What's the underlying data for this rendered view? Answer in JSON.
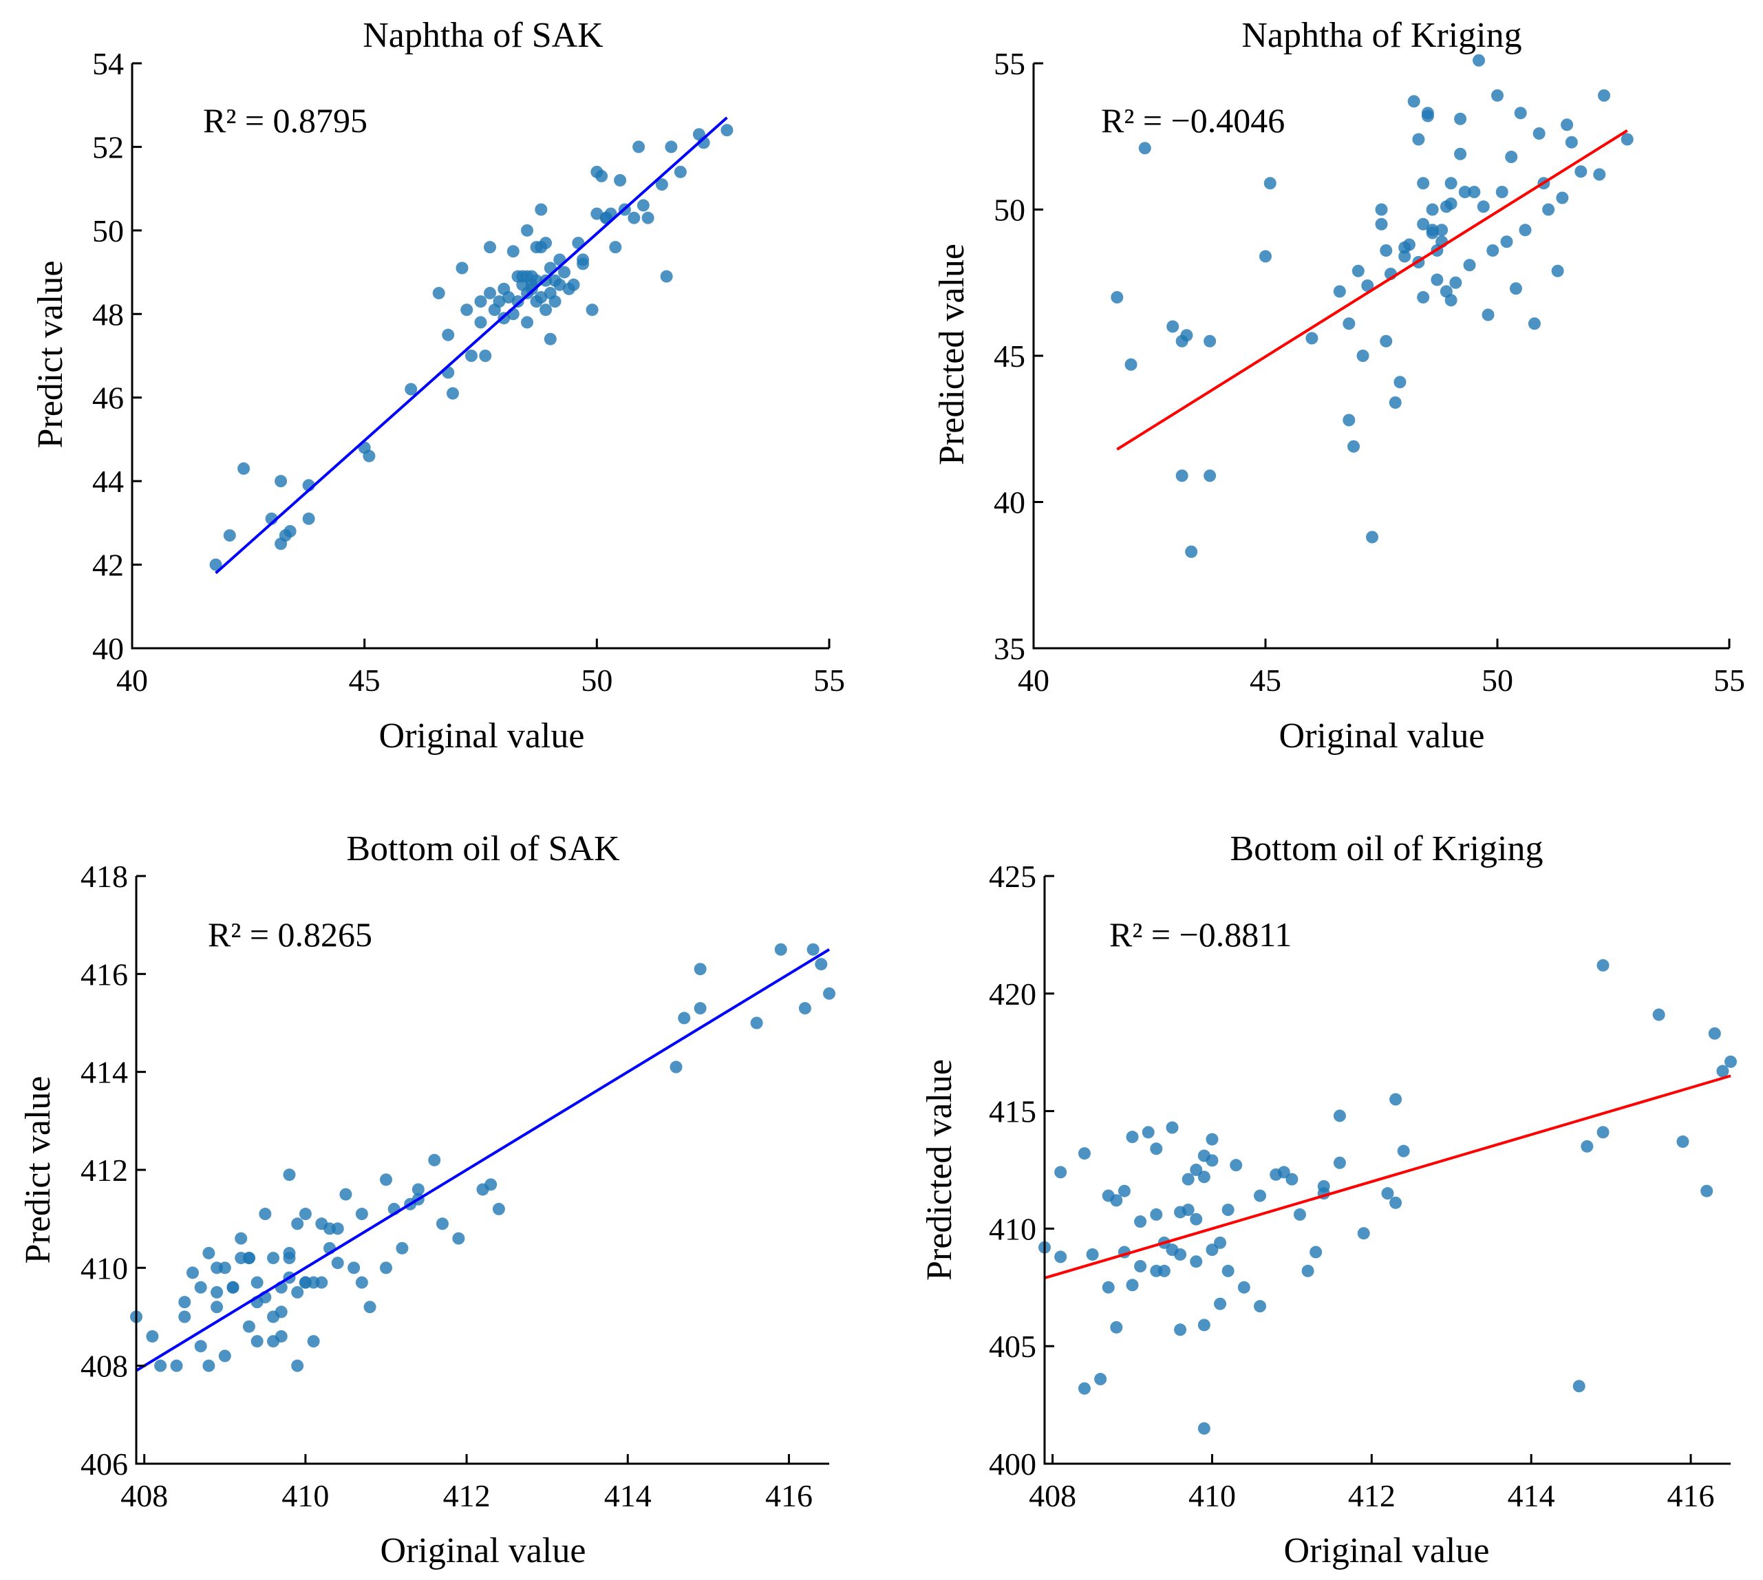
{
  "colors": {
    "point": "#1f77b4",
    "sak_fit": "#0000ff",
    "kriging_fit": "#ff0000",
    "axis": "#000000"
  },
  "chart_data": [
    {
      "type": "scatter",
      "title": "Naphtha of SAK",
      "xlabel": "Original value",
      "ylabel": "Predict value",
      "annotation": "R² = 0.8795",
      "xlim": [
        40,
        55
      ],
      "ylim": [
        40,
        54
      ],
      "xticks": [
        "40",
        "45",
        "50",
        "55"
      ],
      "yticks": [
        "40",
        "42",
        "44",
        "46",
        "48",
        "50",
        "52",
        "54"
      ],
      "fit_line": {
        "x": [
          41.8,
          52.8
        ],
        "y": [
          41.8,
          52.7
        ],
        "color": "#0000ff"
      },
      "x": [
        41.8,
        42.1,
        42.4,
        43.0,
        43.2,
        43.2,
        43.4,
        43.8,
        43.8,
        43.3,
        45.0,
        45.1,
        46.0,
        46.6,
        46.8,
        46.9,
        46.8,
        47.1,
        47.2,
        47.3,
        47.5,
        47.6,
        47.7,
        47.7,
        47.9,
        48.0,
        48.2,
        48.3,
        48.3,
        48.4,
        48.5,
        48.5,
        48.5,
        48.6,
        48.6,
        48.7,
        48.7,
        48.8,
        48.8,
        48.9,
        48.9,
        49.0,
        49.0,
        49.1,
        49.2,
        49.2,
        49.3,
        49.4,
        49.5,
        49.6,
        49.7,
        49.7,
        49.9,
        50.0,
        50.0,
        50.1,
        50.2,
        50.3,
        50.4,
        50.5,
        50.6,
        50.8,
        50.9,
        51.0,
        51.1,
        51.4,
        51.5,
        51.6,
        51.8,
        52.2,
        52.3,
        52.8,
        48.4,
        48.5,
        48.9,
        49.0,
        48.2,
        48.0,
        47.8,
        48.6,
        48.7,
        49.1,
        48.8,
        47.5,
        48.1,
        50.2
      ],
      "y": [
        42.0,
        42.7,
        44.3,
        43.1,
        44.0,
        42.5,
        42.8,
        43.9,
        43.1,
        42.7,
        44.8,
        44.6,
        46.2,
        48.5,
        47.5,
        46.1,
        46.6,
        49.1,
        48.1,
        47.0,
        48.3,
        47.0,
        48.5,
        49.6,
        48.3,
        48.6,
        48.0,
        48.3,
        48.9,
        48.7,
        47.8,
        48.5,
        50.0,
        48.9,
        48.6,
        49.6,
        48.3,
        48.4,
        50.5,
        48.1,
        49.7,
        48.5,
        47.4,
        48.3,
        48.7,
        49.3,
        49.0,
        48.6,
        48.7,
        49.7,
        49.3,
        49.2,
        48.1,
        51.4,
        50.4,
        51.3,
        50.3,
        50.4,
        49.6,
        51.2,
        50.5,
        50.3,
        52.0,
        50.6,
        50.3,
        51.1,
        48.9,
        52.0,
        51.4,
        52.3,
        52.1,
        52.4,
        48.9,
        48.9,
        48.8,
        49.1,
        49.5,
        47.9,
        48.1,
        48.7,
        48.8,
        48.8,
        49.6,
        47.8,
        48.4,
        50.3
      ]
    },
    {
      "type": "scatter",
      "title": "Naphtha of Kriging",
      "xlabel": "Original value",
      "ylabel": "Predicted value",
      "annotation": "R² = −0.4046",
      "xlim": [
        40,
        55
      ],
      "ylim": [
        35,
        55
      ],
      "xticks": [
        "40",
        "45",
        "50",
        "55"
      ],
      "yticks": [
        "35",
        "40",
        "45",
        "50",
        "55"
      ],
      "fit_line": {
        "x": [
          41.8,
          52.8
        ],
        "y": [
          41.8,
          52.7
        ],
        "color": "#ff0000"
      },
      "x": [
        41.8,
        42.1,
        42.4,
        43.0,
        43.2,
        43.3,
        43.4,
        43.8,
        43.8,
        43.2,
        45.0,
        45.1,
        46.0,
        46.6,
        46.8,
        46.8,
        46.9,
        47.0,
        47.1,
        47.2,
        47.3,
        47.5,
        47.6,
        47.6,
        47.7,
        47.8,
        47.9,
        48.0,
        48.1,
        48.2,
        48.3,
        48.3,
        48.4,
        48.4,
        48.5,
        48.5,
        48.6,
        48.6,
        48.7,
        48.7,
        48.8,
        48.8,
        48.9,
        48.9,
        49.0,
        49.0,
        49.1,
        49.2,
        49.2,
        49.3,
        49.4,
        49.5,
        49.6,
        49.7,
        49.8,
        49.9,
        50.0,
        50.1,
        50.2,
        50.3,
        50.4,
        50.5,
        50.6,
        50.8,
        50.9,
        51.0,
        51.1,
        51.3,
        51.4,
        51.5,
        51.6,
        51.8,
        52.2,
        52.3,
        52.8,
        48.4,
        48.6,
        49.0,
        47.5,
        48.0
      ],
      "y": [
        47.0,
        44.7,
        52.1,
        46.0,
        45.5,
        45.7,
        38.3,
        45.5,
        40.9,
        40.9,
        48.4,
        50.9,
        45.6,
        47.2,
        46.1,
        42.8,
        41.9,
        47.9,
        45.0,
        47.4,
        38.8,
        50.0,
        48.6,
        45.5,
        47.8,
        43.4,
        44.1,
        48.4,
        48.8,
        53.7,
        52.4,
        48.2,
        50.9,
        47.0,
        53.2,
        53.3,
        50.0,
        49.3,
        47.6,
        48.6,
        48.9,
        49.3,
        50.1,
        47.2,
        50.9,
        46.9,
        47.5,
        51.9,
        53.1,
        50.6,
        48.1,
        50.6,
        55.1,
        50.1,
        46.4,
        48.6,
        53.9,
        50.6,
        48.9,
        51.8,
        47.3,
        53.3,
        49.3,
        46.1,
        52.6,
        50.9,
        50.0,
        47.9,
        50.4,
        52.9,
        52.3,
        51.3,
        51.2,
        53.9,
        52.4,
        49.5,
        49.2,
        50.2,
        49.5,
        48.7
      ]
    },
    {
      "type": "scatter",
      "title": "Bottom oil of SAK",
      "xlabel": "Original value",
      "ylabel": "Predict value",
      "annotation": "R² = 0.8265",
      "xlim": [
        407.9,
        416.5
      ],
      "ylim": [
        406,
        418
      ],
      "xticks": [
        "408",
        "410",
        "412",
        "414",
        "416"
      ],
      "yticks": [
        "406",
        "408",
        "410",
        "412",
        "414",
        "416",
        "418"
      ],
      "fit_line": {
        "x": [
          407.9,
          416.5
        ],
        "y": [
          407.9,
          416.5
        ],
        "color": "#0000ff"
      },
      "x": [
        407.9,
        408.1,
        408.2,
        408.4,
        408.5,
        408.5,
        408.7,
        408.7,
        408.8,
        408.8,
        408.9,
        409.0,
        409.0,
        409.1,
        409.2,
        409.3,
        409.3,
        409.4,
        409.4,
        409.5,
        409.6,
        409.6,
        409.7,
        409.7,
        409.8,
        409.8,
        409.8,
        409.9,
        409.9,
        410.0,
        410.0,
        410.1,
        410.2,
        410.2,
        410.3,
        410.3,
        410.4,
        410.5,
        410.6,
        410.7,
        410.8,
        411.0,
        411.0,
        411.1,
        411.2,
        411.3,
        411.4,
        411.4,
        411.6,
        411.7,
        411.9,
        412.2,
        412.3,
        412.4,
        414.6,
        414.7,
        414.9,
        414.9,
        415.6,
        415.9,
        416.2,
        416.3,
        416.4,
        416.5,
        409.5,
        409.3,
        409.9,
        410.1,
        408.9,
        409.7,
        410.4,
        409.2,
        408.6,
        409.8,
        410.0,
        409.4,
        409.1,
        408.9,
        410.7,
        409.6
      ],
      "y": [
        409.0,
        408.6,
        408.0,
        408.0,
        409.3,
        409.0,
        408.4,
        409.6,
        408.0,
        410.3,
        409.2,
        410.0,
        408.2,
        409.6,
        410.6,
        408.8,
        410.2,
        408.5,
        409.7,
        411.1,
        408.5,
        410.2,
        408.6,
        409.1,
        411.9,
        410.3,
        409.8,
        408.0,
        410.9,
        411.1,
        409.7,
        408.5,
        410.9,
        409.7,
        410.4,
        410.8,
        410.1,
        411.5,
        410.0,
        411.1,
        409.2,
        411.8,
        410.0,
        411.2,
        410.4,
        411.3,
        411.6,
        411.4,
        412.2,
        410.9,
        410.6,
        411.6,
        411.7,
        411.2,
        414.1,
        415.1,
        415.3,
        416.1,
        415.0,
        416.5,
        415.3,
        416.5,
        416.2,
        415.6,
        409.4,
        410.2,
        409.5,
        409.7,
        410.0,
        409.6,
        410.8,
        410.2,
        409.9,
        410.2,
        409.7,
        409.3,
        409.6,
        409.5,
        409.7,
        409.0
      ]
    },
    {
      "type": "scatter",
      "title": "Bottom oil of Kriging",
      "xlabel": "Original value",
      "ylabel": "Predicted value",
      "annotation": "R² = −0.8811",
      "xlim": [
        407.9,
        416.5
      ],
      "ylim": [
        400,
        425
      ],
      "xticks": [
        "408",
        "410",
        "412",
        "414",
        "416"
      ],
      "yticks": [
        "400",
        "405",
        "410",
        "415",
        "420",
        "425"
      ],
      "fit_line": {
        "x": [
          407.9,
          416.5
        ],
        "y": [
          407.9,
          416.5
        ],
        "color": "#ff0000"
      },
      "x": [
        407.9,
        408.1,
        408.1,
        408.4,
        408.4,
        408.5,
        408.6,
        408.7,
        408.7,
        408.8,
        408.8,
        408.9,
        409.0,
        409.0,
        409.1,
        409.2,
        409.3,
        409.3,
        409.4,
        409.4,
        409.5,
        409.6,
        409.6,
        409.7,
        409.7,
        409.8,
        409.8,
        409.9,
        409.9,
        409.9,
        410.0,
        410.0,
        410.1,
        410.2,
        410.2,
        410.3,
        410.4,
        410.6,
        410.6,
        410.8,
        411.0,
        411.1,
        411.2,
        411.3,
        411.4,
        411.4,
        411.6,
        411.6,
        411.9,
        412.2,
        412.3,
        412.3,
        412.4,
        414.6,
        414.7,
        414.9,
        414.9,
        415.6,
        415.9,
        416.2,
        416.3,
        416.4,
        416.5,
        409.9,
        409.5,
        409.3,
        410.0,
        409.1,
        409.8,
        409.6,
        408.9,
        410.1,
        410.9
      ],
      "y": [
        409.2,
        412.4,
        408.8,
        403.2,
        413.2,
        408.9,
        403.6,
        407.5,
        411.4,
        411.2,
        405.8,
        409.0,
        407.6,
        413.9,
        410.3,
        414.1,
        408.2,
        413.4,
        409.4,
        408.2,
        414.3,
        405.7,
        408.9,
        412.1,
        410.8,
        412.5,
        408.6,
        405.9,
        412.2,
        413.1,
        409.1,
        413.8,
        406.8,
        410.8,
        408.2,
        412.7,
        407.5,
        411.4,
        406.7,
        412.3,
        412.1,
        410.6,
        408.2,
        409.0,
        411.8,
        411.5,
        414.8,
        412.8,
        409.8,
        411.5,
        411.1,
        415.5,
        413.3,
        403.3,
        413.5,
        421.2,
        414.1,
        419.1,
        413.7,
        411.6,
        418.3,
        416.7,
        417.1,
        401.5,
        409.1,
        410.6,
        412.9,
        408.4,
        410.4,
        410.7,
        411.6,
        409.4,
        412.4
      ]
    }
  ]
}
